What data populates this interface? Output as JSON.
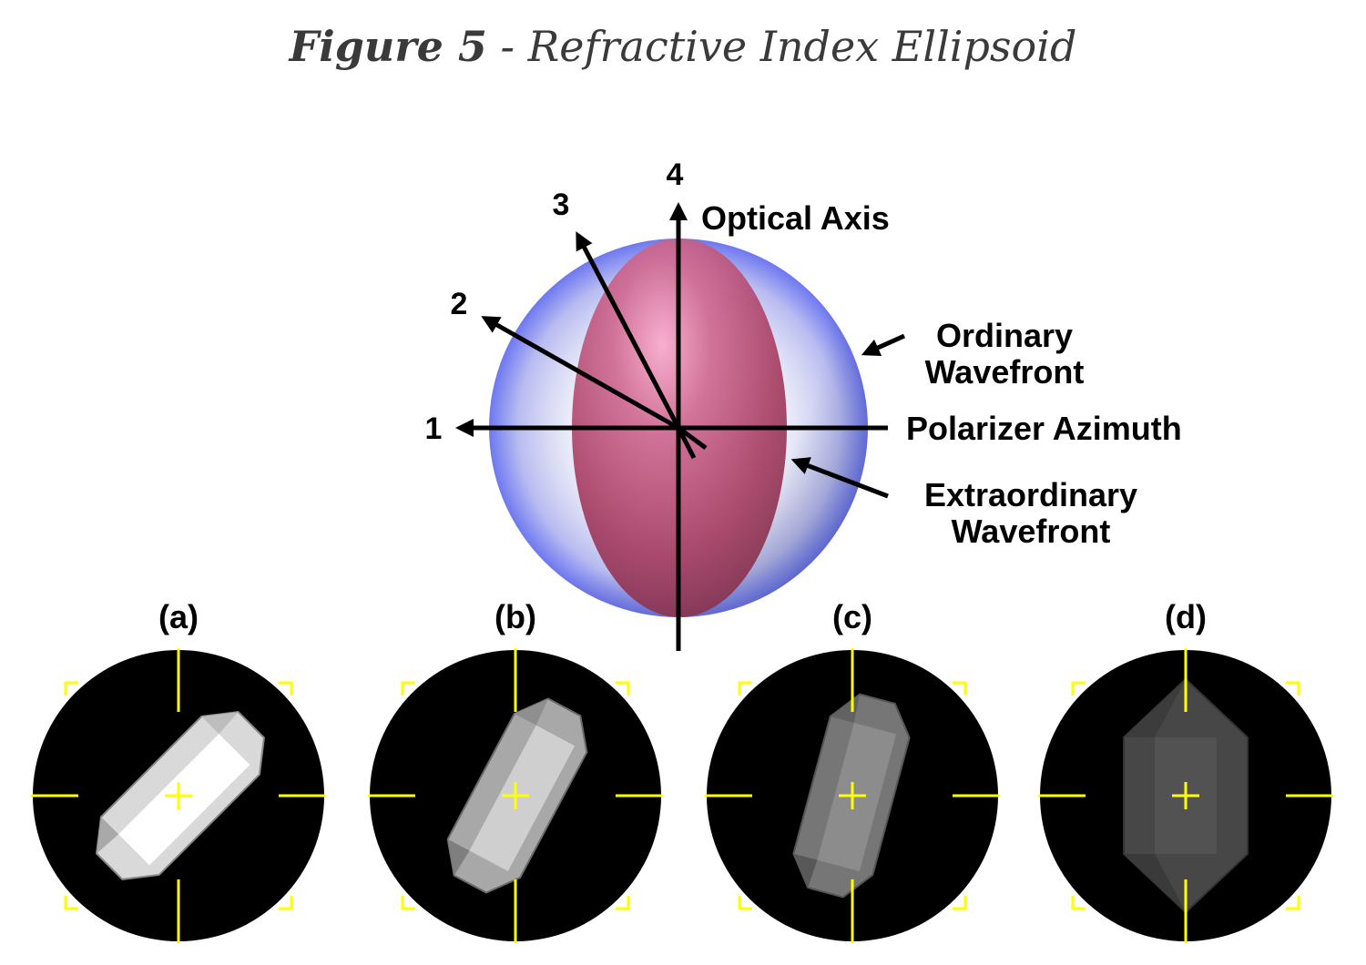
{
  "figure": {
    "number_label": "Figure 5",
    "separator": " - ",
    "caption": "Refractive Index Ellipsoid"
  },
  "diagram": {
    "axis_labels": {
      "one": "1",
      "two": "2",
      "three": "3",
      "four": "4"
    },
    "optical_axis": "Optical Axis",
    "ordinary_line1": "Ordinary",
    "ordinary_line2": "Wavefront",
    "polarizer": "Polarizer Azimuth",
    "extraordinary_line1": "Extraordinary",
    "extraordinary_line2": "Wavefront"
  },
  "panels": [
    {
      "label": "(a)",
      "crystal_angle_deg": 45,
      "brightness": 0.95
    },
    {
      "label": "(b)",
      "crystal_angle_deg": 30,
      "brightness": 0.75
    },
    {
      "label": "(c)",
      "crystal_angle_deg": 20,
      "brightness": 0.55
    },
    {
      "label": "(d)",
      "crystal_angle_deg": 0,
      "brightness": 0.35
    }
  ],
  "colors": {
    "ordinary_sphere": "#6e78f0",
    "extraordinary_ellipsoid": "#b0406a",
    "crosshair": "#ffff00",
    "field": "#000000"
  }
}
